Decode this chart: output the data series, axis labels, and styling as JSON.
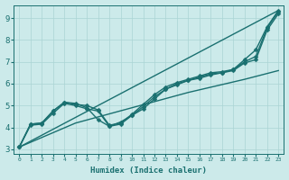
{
  "xlabel": "Humidex (Indice chaleur)",
  "ylabel": "",
  "xlim": [
    -0.5,
    23.5
  ],
  "ylim": [
    2.8,
    9.6
  ],
  "bg_color": "#cceaea",
  "grid_color": "#aad4d4",
  "line_color": "#1a7070",
  "lines": [
    {
      "x": [
        0,
        1,
        2,
        3,
        4,
        5,
        6,
        7,
        8,
        9,
        10,
        11,
        12,
        13,
        14,
        15,
        16,
        17,
        18,
        19,
        20,
        21,
        22,
        23
      ],
      "y": [
        3.1,
        4.15,
        4.2,
        4.75,
        5.15,
        5.1,
        4.9,
        4.35,
        4.05,
        4.25,
        4.55,
        4.85,
        5.3,
        5.75,
        5.95,
        6.15,
        6.25,
        6.4,
        6.5,
        6.65,
        7.1,
        7.55,
        8.6,
        9.35
      ],
      "marker": "D",
      "markersize": 2.5,
      "linewidth": 1.0
    },
    {
      "x": [
        0,
        1,
        2,
        3,
        4,
        5,
        6,
        7,
        8,
        9,
        10,
        11,
        12,
        13,
        14,
        15,
        16,
        17,
        18,
        19,
        20,
        21,
        22,
        23
      ],
      "y": [
        3.1,
        4.15,
        4.2,
        4.75,
        5.15,
        5.05,
        5.0,
        4.8,
        4.1,
        4.2,
        4.6,
        5.05,
        5.5,
        5.85,
        6.05,
        6.2,
        6.35,
        6.5,
        6.55,
        6.65,
        7.0,
        7.25,
        8.55,
        9.3
      ],
      "marker": "D",
      "markersize": 2.5,
      "linewidth": 1.0
    },
    {
      "x": [
        0,
        23
      ],
      "y": [
        3.1,
        9.35
      ],
      "marker": null,
      "markersize": 0,
      "linewidth": 1.0
    },
    {
      "x": [
        0,
        5,
        10,
        15,
        20,
        23
      ],
      "y": [
        3.1,
        4.2,
        4.9,
        5.6,
        6.2,
        6.6
      ],
      "marker": null,
      "markersize": 0,
      "linewidth": 1.0
    },
    {
      "x": [
        0,
        1,
        2,
        3,
        4,
        5,
        6,
        7,
        8,
        9,
        10,
        11,
        12,
        13,
        14,
        15,
        16,
        17,
        18,
        19,
        20,
        21,
        22,
        23
      ],
      "y": [
        3.1,
        4.1,
        4.15,
        4.65,
        5.1,
        5.0,
        4.85,
        4.75,
        4.05,
        4.15,
        4.55,
        4.95,
        5.4,
        5.75,
        6.0,
        6.15,
        6.3,
        6.45,
        6.5,
        6.6,
        6.95,
        7.1,
        8.45,
        9.2
      ],
      "marker": "D",
      "markersize": 2.5,
      "linewidth": 1.0
    }
  ]
}
